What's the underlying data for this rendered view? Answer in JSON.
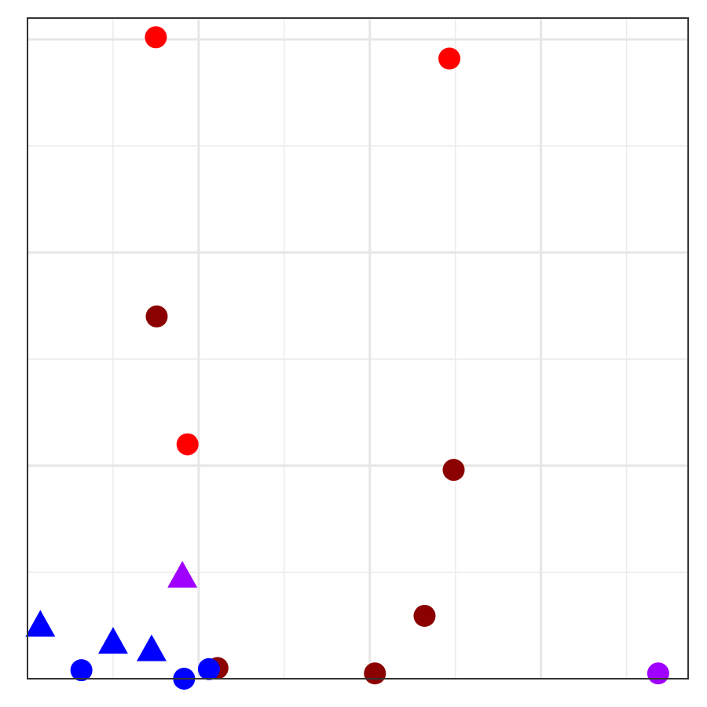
{
  "chart_data": {
    "type": "scatter",
    "title": "",
    "xlabel": "",
    "ylabel": "",
    "grid": true,
    "xlim": [
      0,
      7.72
    ],
    "ylim": [
      0,
      6.2
    ],
    "x_major_ticks": [
      2,
      4,
      6
    ],
    "x_minor_ticks": [
      1,
      3,
      5,
      7
    ],
    "y_major_ticks": [
      2,
      4,
      6
    ],
    "y_minor_ticks": [
      1,
      3,
      5
    ],
    "series": [
      {
        "color": "#ff0000",
        "marker": "circle",
        "points": [
          {
            "x": 1.5,
            "y": 6.02
          },
          {
            "x": 4.93,
            "y": 5.82
          },
          {
            "x": 1.87,
            "y": 2.2
          }
        ]
      },
      {
        "color": "#8b0000",
        "marker": "circle",
        "points": [
          {
            "x": 1.51,
            "y": 3.4
          },
          {
            "x": 4.98,
            "y": 1.96
          },
          {
            "x": 4.64,
            "y": 0.59
          },
          {
            "x": 4.06,
            "y": 0.05
          },
          {
            "x": 2.22,
            "y": 0.1
          }
        ]
      },
      {
        "color": "#0000ff",
        "marker": "circle",
        "points": [
          {
            "x": 0.63,
            "y": 0.08
          },
          {
            "x": 1.83,
            "y": 0.0
          },
          {
            "x": 2.12,
            "y": 0.09
          }
        ]
      },
      {
        "color": "#0000ff",
        "marker": "triangle",
        "points": [
          {
            "x": 0.15,
            "y": 0.5
          },
          {
            "x": 1.0,
            "y": 0.34
          },
          {
            "x": 1.45,
            "y": 0.27
          }
        ]
      },
      {
        "color": "#a000ff",
        "marker": "circle",
        "points": [
          {
            "x": 7.37,
            "y": 0.05
          }
        ]
      },
      {
        "color": "#a000ff",
        "marker": "triangle",
        "points": [
          {
            "x": 1.81,
            "y": 0.96
          }
        ]
      }
    ]
  }
}
